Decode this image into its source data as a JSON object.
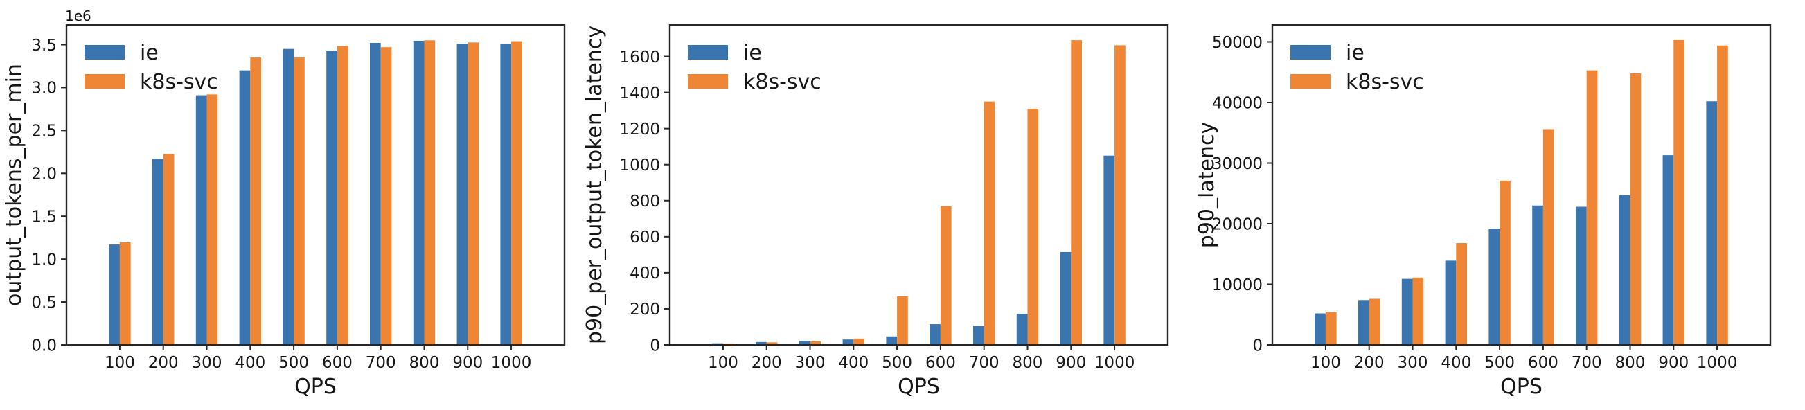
{
  "figure": {
    "background": "#ffffff",
    "text_color": "#161616",
    "axis_color": "#262626",
    "xlabel": "QPS",
    "legend": {
      "position": "upper left",
      "entries": [
        {
          "label": "ie",
          "color": "#3b75af"
        },
        {
          "label": "k8s-svc",
          "color": "#ee8636"
        }
      ]
    }
  },
  "chart_data": [
    {
      "type": "bar",
      "title": "",
      "xlabel": "QPS",
      "ylabel": "output_tokens_per_min",
      "offset_text": "1e6",
      "grid": false,
      "legend_position": "upper left",
      "categories": [
        "100",
        "200",
        "300",
        "400",
        "500",
        "600",
        "700",
        "800",
        "900",
        "1000"
      ],
      "series": [
        {
          "name": "ie",
          "color": "#3b75af",
          "values": [
            1170000,
            2170000,
            2910000,
            3200000,
            3450000,
            3430000,
            3520000,
            3545000,
            3510000,
            3505000
          ]
        },
        {
          "name": "k8s-svc",
          "color": "#ee8636",
          "values": [
            1195000,
            2225000,
            2920000,
            3350000,
            3350000,
            3485000,
            3470000,
            3550000,
            3525000,
            3540000
          ]
        }
      ],
      "ylim": [
        0,
        3730000
      ],
      "yticks": [
        0,
        500000,
        1000000,
        1500000,
        2000000,
        2500000,
        3000000,
        3500000
      ],
      "ytick_labels": [
        "0.0",
        "0.5",
        "1.0",
        "1.5",
        "2.0",
        "2.5",
        "3.0",
        "3.5"
      ]
    },
    {
      "type": "bar",
      "title": "",
      "xlabel": "QPS",
      "ylabel": "p90_per_output_token_latency",
      "offset_text": "",
      "grid": false,
      "legend_position": "upper left",
      "categories": [
        "100",
        "200",
        "300",
        "400",
        "500",
        "600",
        "700",
        "800",
        "900",
        "1000"
      ],
      "series": [
        {
          "name": "ie",
          "color": "#3b75af",
          "values": [
            9,
            16,
            22,
            30,
            47,
            115,
            105,
            173,
            515,
            1050
          ]
        },
        {
          "name": "k8s-svc",
          "color": "#ee8636",
          "values": [
            8,
            14,
            20,
            35,
            270,
            770,
            1350,
            1310,
            1690,
            1662
          ]
        }
      ],
      "ylim": [
        0,
        1775
      ],
      "yticks": [
        0,
        200,
        400,
        600,
        800,
        1000,
        1200,
        1400,
        1600
      ],
      "ytick_labels": [
        "0",
        "200",
        "400",
        "600",
        "800",
        "1000",
        "1200",
        "1400",
        "1600"
      ]
    },
    {
      "type": "bar",
      "title": "",
      "xlabel": "QPS",
      "ylabel": "p90_latency",
      "offset_text": "",
      "grid": false,
      "legend_position": "upper left",
      "categories": [
        "100",
        "200",
        "300",
        "400",
        "500",
        "600",
        "700",
        "800",
        "900",
        "1000"
      ],
      "series": [
        {
          "name": "ie",
          "color": "#3b75af",
          "values": [
            5200,
            7400,
            10900,
            13900,
            19200,
            23000,
            22800,
            24700,
            31300,
            40200
          ]
        },
        {
          "name": "k8s-svc",
          "color": "#ee8636",
          "values": [
            5400,
            7600,
            11100,
            16800,
            27100,
            35600,
            45300,
            44800,
            50300,
            49400
          ]
        }
      ],
      "ylim": [
        0,
        52800
      ],
      "yticks": [
        0,
        10000,
        20000,
        30000,
        40000,
        50000
      ],
      "ytick_labels": [
        "0",
        "10000",
        "20000",
        "30000",
        "40000",
        "50000"
      ]
    }
  ]
}
